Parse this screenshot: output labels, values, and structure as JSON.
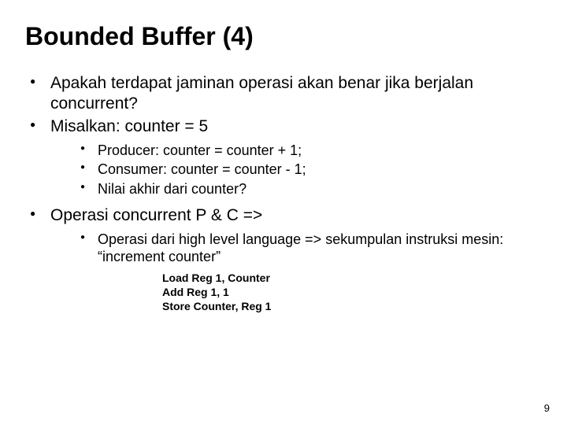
{
  "title": "Bounded Buffer (4)",
  "l1": {
    "b1": "Apakah terdapat jaminan operasi akan benar jika berjalan concurrent?",
    "b2": "Misalkan: counter = 5",
    "b2_sub": {
      "s1": "Producer: counter = counter + 1;",
      "s2": "Consumer: counter = counter - 1;",
      "s3": "Nilai akhir dari counter?"
    },
    "b3": "Operasi concurrent P & C =>",
    "b3_sub": {
      "s1": "Operasi dari high level language => sekumpulan instruksi mesin: “increment counter”"
    }
  },
  "code": {
    "line1": "Load Reg 1, Counter",
    "line2": "Add Reg 1, 1",
    "line3": "Store Counter, Reg 1"
  },
  "page_number": "9"
}
